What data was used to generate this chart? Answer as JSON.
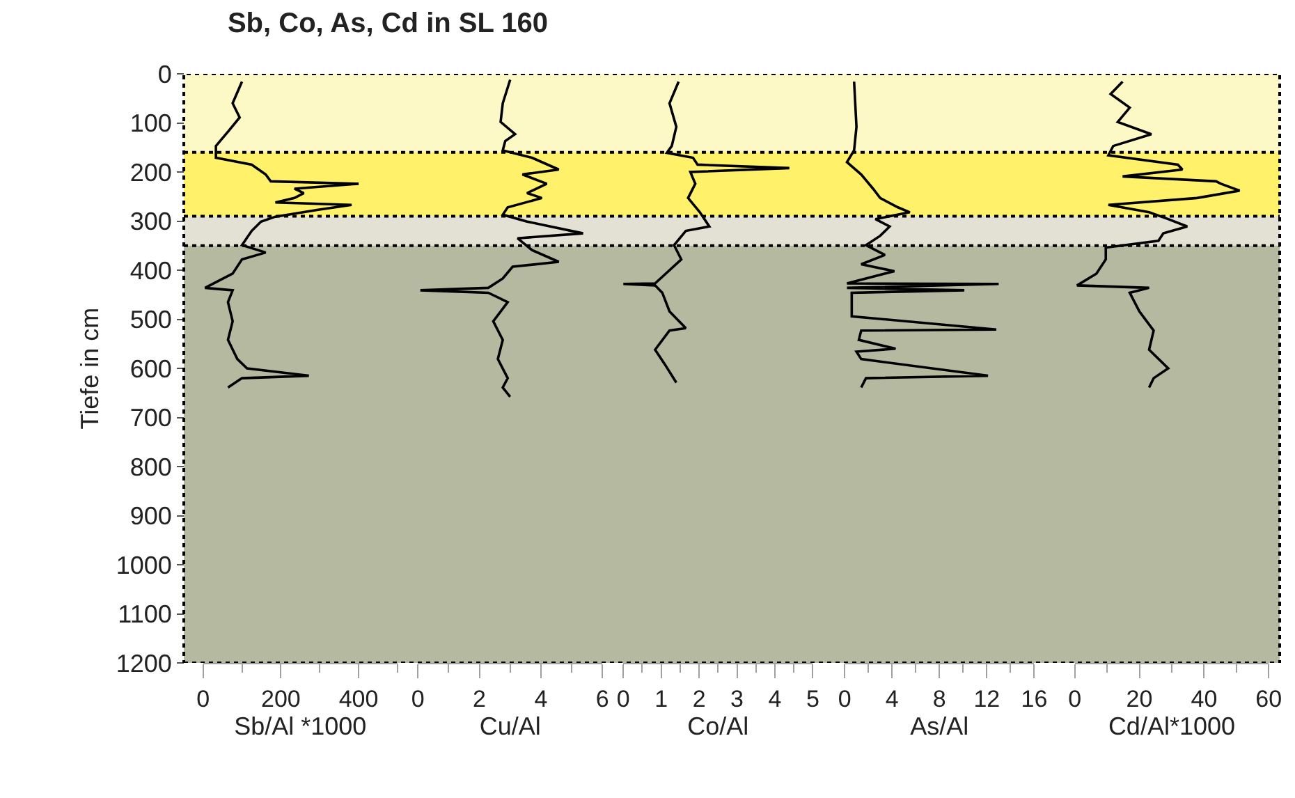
{
  "chart_data": [
    {
      "type": "line",
      "title": "Sb, Co, As, Cd in SL 160",
      "xlabel": "Sb/Al *1000",
      "ylabel": "Tiefe in cm",
      "xlim": [
        0,
        500
      ],
      "xticks": [
        0,
        {
          "value": 100,
          "label": null
        },
        200,
        {
          "value": 300,
          "label": null
        },
        400,
        {
          "value": 500,
          "label": null
        }
      ],
      "ylim": [
        1200,
        0
      ],
      "yticks": [
        0,
        100,
        200,
        300,
        400,
        500,
        600,
        700,
        800,
        900,
        1000,
        1100,
        1200
      ],
      "bands": [
        {
          "axis": "y",
          "from": 0,
          "to": 160,
          "color": "#fdf9c6"
        },
        {
          "axis": "y",
          "from": 160,
          "to": 290,
          "color": "#fff16a"
        },
        {
          "axis": "y",
          "from": 290,
          "to": 350,
          "color": "#e2e1d3"
        },
        {
          "axis": "y",
          "from": 350,
          "to": 1200,
          "color": "#b5b9a0"
        }
      ],
      "ref_lines": [
        {
          "axis": "y",
          "value": 160,
          "color": "#000000",
          "line_style": "dotted"
        },
        {
          "axis": "y",
          "value": 290,
          "color": "#000000",
          "line_style": "dotted"
        },
        {
          "axis": "y",
          "value": 350,
          "color": "#000000",
          "line_style": "dotted"
        }
      ],
      "series": [
        {
          "color": "#000000",
          "x": [
            100,
            76,
            94,
            64,
            33,
            33,
            125,
            161,
            174,
            400,
            235,
            259,
            235,
            186,
            382,
            296,
            186,
            149,
            125,
            100,
            161,
            100,
            76,
            5,
            76,
            64,
            76,
            64,
            88,
            113,
            272,
            100,
            64
          ],
          "values": [
            16,
            60,
            89,
            118,
            147,
            171,
            185,
            205,
            219,
            224,
            234,
            243,
            253,
            262,
            267,
            277,
            291,
            301,
            320,
            349,
            364,
            378,
            407,
            436,
            441,
            465,
            504,
            542,
            581,
            600,
            615,
            620,
            639
          ]
        }
      ]
    },
    {
      "type": "line",
      "xlabel": "Cu/Al",
      "xlim": [
        0,
        6
      ],
      "xticks": [
        0,
        {
          "value": 1,
          "label": null
        },
        2,
        {
          "value": 3,
          "label": null
        },
        4,
        {
          "value": 5,
          "label": null
        },
        6
      ],
      "ylim": [
        1200,
        0
      ],
      "tick_labels": "x",
      "series": [
        {
          "color": "#000000",
          "x": [
            3.0,
            2.76,
            2.69,
            3.16,
            2.84,
            2.76,
            3.71,
            4.58,
            3.4,
            4.19,
            3.55,
            4.03,
            2.92,
            2.76,
            3.55,
            5.37,
            3.24,
            3.71,
            4.58,
            3.08,
            2.76,
            2.29,
            0.08,
            2.29,
            2.92,
            2.45,
            2.76,
            2.6,
            2.92,
            2.76,
            3.0
          ],
          "values": [
            12,
            60,
            98,
            123,
            137,
            156,
            171,
            195,
            205,
            224,
            243,
            253,
            272,
            287,
            301,
            325,
            335,
            359,
            383,
            393,
            417,
            436,
            441,
            446,
            465,
            504,
            542,
            581,
            620,
            639,
            658
          ]
        }
      ]
    },
    {
      "type": "line",
      "xlabel": "Co/Al",
      "xlim": [
        0,
        5
      ],
      "xticks": [
        0,
        {
          "value": 0.5,
          "label": null
        },
        1,
        {
          "value": 1.5,
          "label": null
        },
        2,
        {
          "value": 2.5,
          "label": null
        },
        3,
        {
          "value": 3.5,
          "label": null
        },
        4,
        {
          "value": 4.5,
          "label": null
        },
        5
      ],
      "ylim": [
        1200,
        0
      ],
      "tick_labels": "x",
      "series": [
        {
          "color": "#000000",
          "x": [
            1.46,
            1.22,
            1.4,
            1.28,
            1.15,
            1.84,
            1.96,
            4.38,
            1.77,
            1.9,
            1.71,
            2.02,
            2.27,
            1.65,
            1.34,
            1.53,
            0.84,
            0.0,
            0.84,
            1.03,
            1.22,
            1.65,
            1.22,
            0.84,
            1.09,
            1.4
          ],
          "values": [
            16,
            60,
            108,
            147,
            161,
            171,
            185,
            192,
            200,
            224,
            253,
            282,
            311,
            320,
            349,
            378,
            427,
            428,
            431,
            446,
            484,
            518,
            523,
            562,
            591,
            629
          ]
        }
      ]
    },
    {
      "type": "line",
      "xlabel": "As/Al",
      "xlim": [
        0,
        16
      ],
      "xticks": [
        0,
        {
          "value": 2,
          "label": null
        },
        4,
        {
          "value": 6,
          "label": null
        },
        8,
        {
          "value": 10,
          "label": null
        },
        12,
        {
          "value": 14,
          "label": null
        },
        16
      ],
      "ylim": [
        1200,
        0
      ],
      "tick_labels": "x",
      "series": [
        {
          "color": "#000000",
          "x": [
            0.8,
            1.0,
            0.8,
            0.2,
            1.4,
            2.4,
            3.0,
            4.5,
            5.5,
            2.6,
            3.8,
            3.0,
            1.8,
            3.4,
            1.4,
            4.2,
            0.2,
            13.0,
            0.2,
            10.1,
            0.6,
            0.6,
            12.8,
            1.4,
            1.2,
            4.3,
            1.0,
            1.4,
            12.1,
            1.8,
            1.4
          ],
          "values": [
            16,
            108,
            156,
            180,
            205,
            234,
            253,
            272,
            282,
            296,
            311,
            330,
            349,
            369,
            388,
            402,
            427,
            428,
            436,
            441,
            446,
            494,
            521,
            523,
            542,
            560,
            566,
            581,
            615,
            620,
            639
          ]
        }
      ]
    },
    {
      "type": "line",
      "xlabel": "Cd/Al*1000",
      "xlim": [
        0,
        60
      ],
      "xticks": [
        0,
        {
          "value": 10,
          "label": null
        },
        20,
        {
          "value": 30,
          "label": null
        },
        40,
        {
          "value": 50,
          "label": null
        },
        60
      ],
      "ylim": [
        1200,
        0
      ],
      "tick_labels": "x",
      "series": [
        {
          "color": "#000000",
          "x": [
            14.8,
            11.1,
            17,
            13.3,
            23.7,
            11.9,
            10.4,
            31.9,
            33.3,
            14.8,
            43.7,
            45.2,
            51,
            37.8,
            10.4,
            23,
            28.9,
            34.8,
            27.4,
            25.9,
            9.6,
            9.6,
            6.7,
            0.7,
            23,
            17,
            20,
            24.4,
            23,
            28.9,
            24.4,
            23
          ],
          "values": [
            16,
            41,
            69,
            98,
            123,
            147,
            166,
            185,
            195,
            209,
            219,
            224,
            238,
            253,
            267,
            282,
            296,
            311,
            325,
            340,
            354,
            378,
            407,
            431,
            436,
            446,
            484,
            523,
            562,
            600,
            620,
            639
          ]
        }
      ]
    }
  ]
}
